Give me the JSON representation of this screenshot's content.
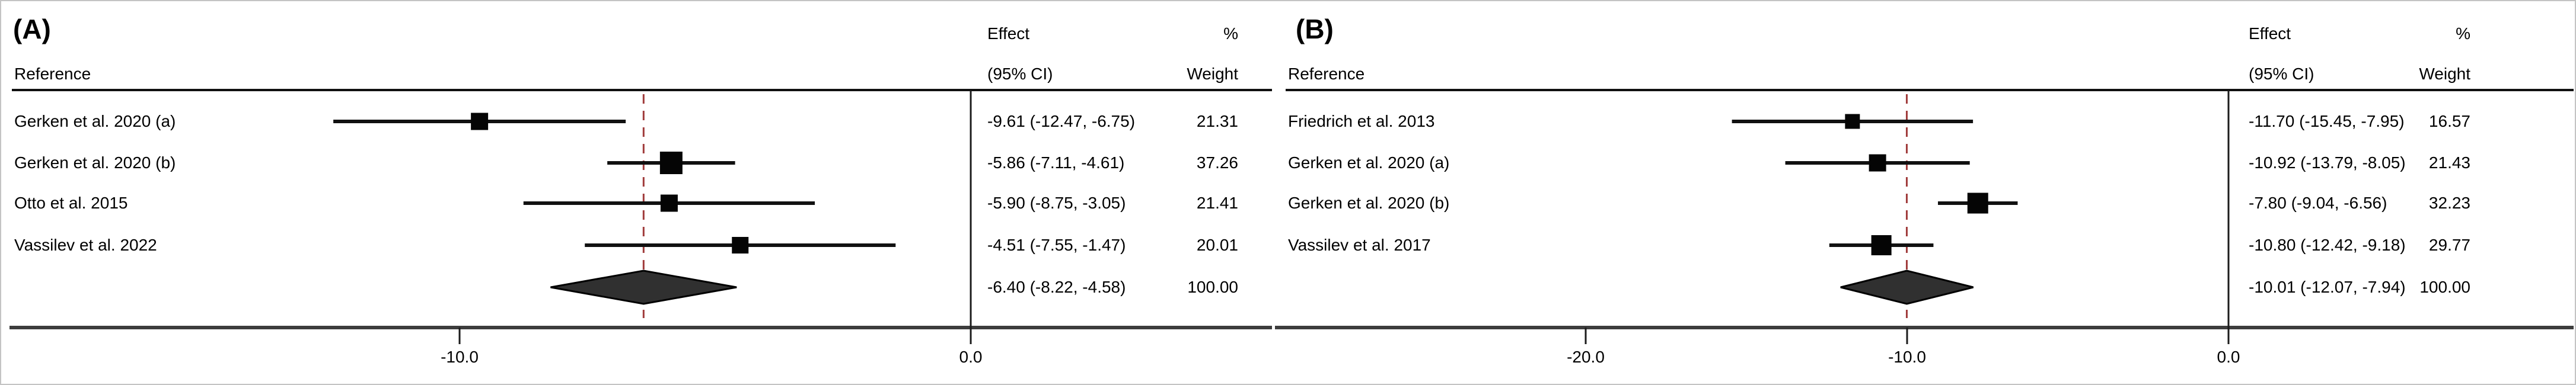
{
  "figure": {
    "kind": "forest-plot-meta-analysis",
    "frame_color": "#c4c4c4"
  },
  "colors": {
    "text": "#000000",
    "axis_line": "#3d3d3d",
    "header_rule": "#111111",
    "ci_line": "#111111",
    "marker": "#050505",
    "diamond_fill": "#303030",
    "diamond_stroke": "#000000",
    "zero_line": "#1c1c1c",
    "overall_dashed_line": "#a03b3b"
  },
  "panels": [
    {
      "label": "(A)",
      "header": {
        "reference": "Reference",
        "effect_line1": "Effect",
        "effect_line2": "(95% CI)",
        "percent": "%",
        "weight": "Weight"
      },
      "studies": [
        {
          "name": "Gerken et al. 2020 (a)",
          "effect": "-9.61 (-12.47, -6.75)",
          "weight": "21.31",
          "estimate": -9.61,
          "ci_low": -12.47,
          "ci_high": -6.75,
          "weight_value": 21.31
        },
        {
          "name": "Gerken et al. 2020 (b)",
          "effect": "-5.86 (-7.11, -4.61)",
          "weight": "37.26",
          "estimate": -5.86,
          "ci_low": -7.11,
          "ci_high": -4.61,
          "weight_value": 37.26
        },
        {
          "name": "Otto et al. 2015",
          "effect": "-5.90 (-8.75, -3.05)",
          "weight": "21.41",
          "estimate": -5.9,
          "ci_low": -8.75,
          "ci_high": -3.05,
          "weight_value": 21.41
        },
        {
          "name": "Vassilev et al. 2022",
          "effect": "-4.51 (-7.55, -1.47)",
          "weight": "20.01",
          "estimate": -4.51,
          "ci_low": -7.55,
          "ci_high": -1.47,
          "weight_value": 20.01
        }
      ],
      "overall": {
        "effect": "-6.40 (-8.22, -4.58)",
        "weight": "100.00",
        "estimate": -6.4,
        "ci_low": -8.22,
        "ci_high": -4.58
      },
      "ticks": [
        {
          "value": -10,
          "label": "-10.0"
        },
        {
          "value": 0,
          "label": "0.0"
        }
      ]
    },
    {
      "label": "(B)",
      "header": {
        "reference": "Reference",
        "effect_line1": "Effect",
        "effect_line2": "(95% CI)",
        "percent": "%",
        "weight": "Weight"
      },
      "studies": [
        {
          "name": "Friedrich et al. 2013",
          "effect": "-11.70 (-15.45, -7.95)",
          "weight": "16.57",
          "estimate": -11.7,
          "ci_low": -15.45,
          "ci_high": -7.95,
          "weight_value": 16.57
        },
        {
          "name": "Gerken et al. 2020 (a)",
          "effect": "-10.92 (-13.79, -8.05)",
          "weight": "21.43",
          "estimate": -10.92,
          "ci_low": -13.79,
          "ci_high": -8.05,
          "weight_value": 21.43
        },
        {
          "name": "Gerken et al. 2020 (b)",
          "effect": "-7.80 (-9.04, -6.56)",
          "weight": "32.23",
          "estimate": -7.8,
          "ci_low": -9.04,
          "ci_high": -6.56,
          "weight_value": 32.23
        },
        {
          "name": "Vassilev et al. 2017",
          "effect": "-10.80 (-12.42, -9.18)",
          "weight": "29.77",
          "estimate": -10.8,
          "ci_low": -12.42,
          "ci_high": -9.18,
          "weight_value": 29.77
        }
      ],
      "overall": {
        "effect": "-10.01 (-12.07, -7.94)",
        "weight": "100.00",
        "estimate": -10.01,
        "ci_low": -12.07,
        "ci_high": -7.94
      },
      "ticks": [
        {
          "value": -20,
          "label": "-20.0"
        },
        {
          "value": -10,
          "label": "-10.0"
        },
        {
          "value": 0,
          "label": "0.0"
        }
      ]
    }
  ],
  "chart_data": [
    {
      "type": "scatter",
      "subtype": "forest-plot",
      "title": "(A)",
      "categories": [
        "Gerken et al. 2020 (a)",
        "Gerken et al. 2020 (b)",
        "Otto et al. 2015",
        "Vassilev et al. 2022"
      ],
      "series": [
        {
          "name": "effect",
          "values": [
            -9.61,
            -5.86,
            -5.9,
            -4.51
          ]
        },
        {
          "name": "ci_low",
          "values": [
            -12.47,
            -7.11,
            -8.75,
            -7.55
          ]
        },
        {
          "name": "ci_high",
          "values": [
            -6.75,
            -4.61,
            -3.05,
            -1.47
          ]
        },
        {
          "name": "weight_pct",
          "values": [
            21.31,
            37.26,
            21.41,
            20.01
          ]
        }
      ],
      "overall": {
        "effect": -6.4,
        "ci_low": -8.22,
        "ci_high": -4.58,
        "weight_pct": 100.0
      },
      "xticks": [
        -10,
        0
      ],
      "xlim": [
        -18.8,
        5.9
      ],
      "reference_line": 0,
      "overall_dashed_line": -6.4,
      "grid": false,
      "legend": false
    },
    {
      "type": "scatter",
      "subtype": "forest-plot",
      "title": "(B)",
      "categories": [
        "Friedrich et al. 2013",
        "Gerken et al. 2020 (a)",
        "Gerken et al. 2020 (b)",
        "Vassilev et al. 2017"
      ],
      "series": [
        {
          "name": "effect",
          "values": [
            -11.7,
            -10.92,
            -7.8,
            -10.8
          ]
        },
        {
          "name": "ci_low",
          "values": [
            -15.45,
            -13.79,
            -9.04,
            -12.42
          ]
        },
        {
          "name": "ci_high",
          "values": [
            -7.95,
            -8.05,
            -6.56,
            -9.18
          ]
        },
        {
          "name": "weight_pct",
          "values": [
            16.57,
            21.43,
            32.23,
            29.77
          ]
        }
      ],
      "overall": {
        "effect": -10.01,
        "ci_low": -12.07,
        "ci_high": -7.94,
        "weight_pct": 100.0
      },
      "xticks": [
        -20,
        -10,
        0
      ],
      "xlim": [
        -29.6,
        10.7
      ],
      "reference_line": 0,
      "overall_dashed_line": -10.01,
      "grid": false,
      "legend": false
    }
  ]
}
